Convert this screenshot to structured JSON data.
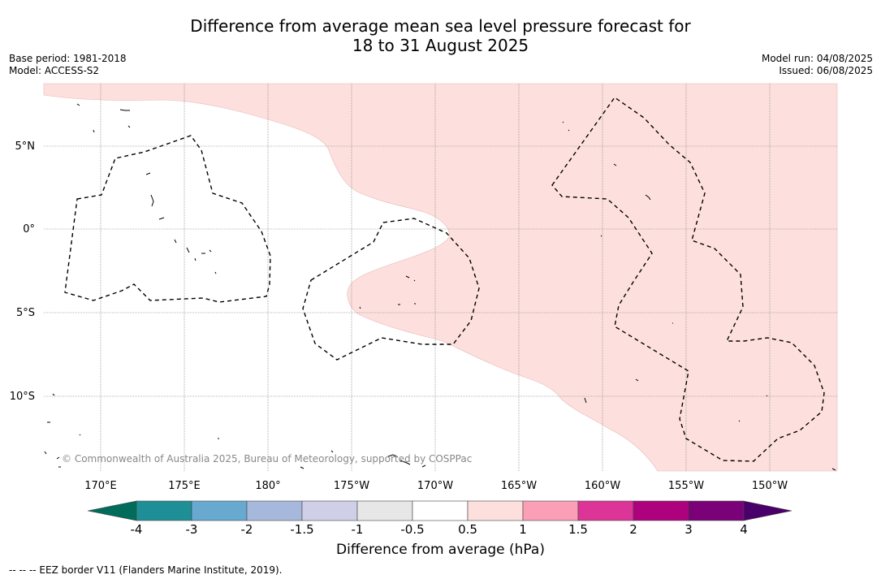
{
  "title_line1": "Difference from average mean sea level pressure forecast for",
  "title_line2": "18 to 31 August 2025",
  "base_period": "Base period: 1981-2018",
  "model": "Model: ACCESS-S2",
  "model_run": "Model run: 04/08/2025",
  "issued": "Issued: 06/08/2025",
  "copyright": "© Commonwealth of Australia 2025, Bureau of Meteorology, supported by COSPPac",
  "lon_labels": [
    "170°E",
    "175°E",
    "180°",
    "175°W",
    "170°W",
    "165°W",
    "160°W",
    "155°W",
    "150°W"
  ],
  "lat_labels": [
    "5°N",
    "0°",
    "5°S",
    "10°S"
  ],
  "colorbar": {
    "label": "Difference from average (hPa)",
    "ticks": [
      "-4",
      "-3",
      "-2",
      "-1.5",
      "-1",
      "-0.5",
      "0.5",
      "1",
      "1.5",
      "2",
      "3",
      "4"
    ],
    "colors": [
      "#1f8f97",
      "#67a9cf",
      "#a6b9dc",
      "#cfd0e8",
      "#e7e7e7",
      "#ffffff",
      "#fde0dd",
      "#fa9fb5",
      "#dd3497",
      "#ae017e",
      "#7a0177"
    ],
    "under_color": "#016c59",
    "over_color": "#49006a"
  },
  "footer": "-- -- -- EEZ border V11 (Flanders Marine Institute, 2019)."
}
